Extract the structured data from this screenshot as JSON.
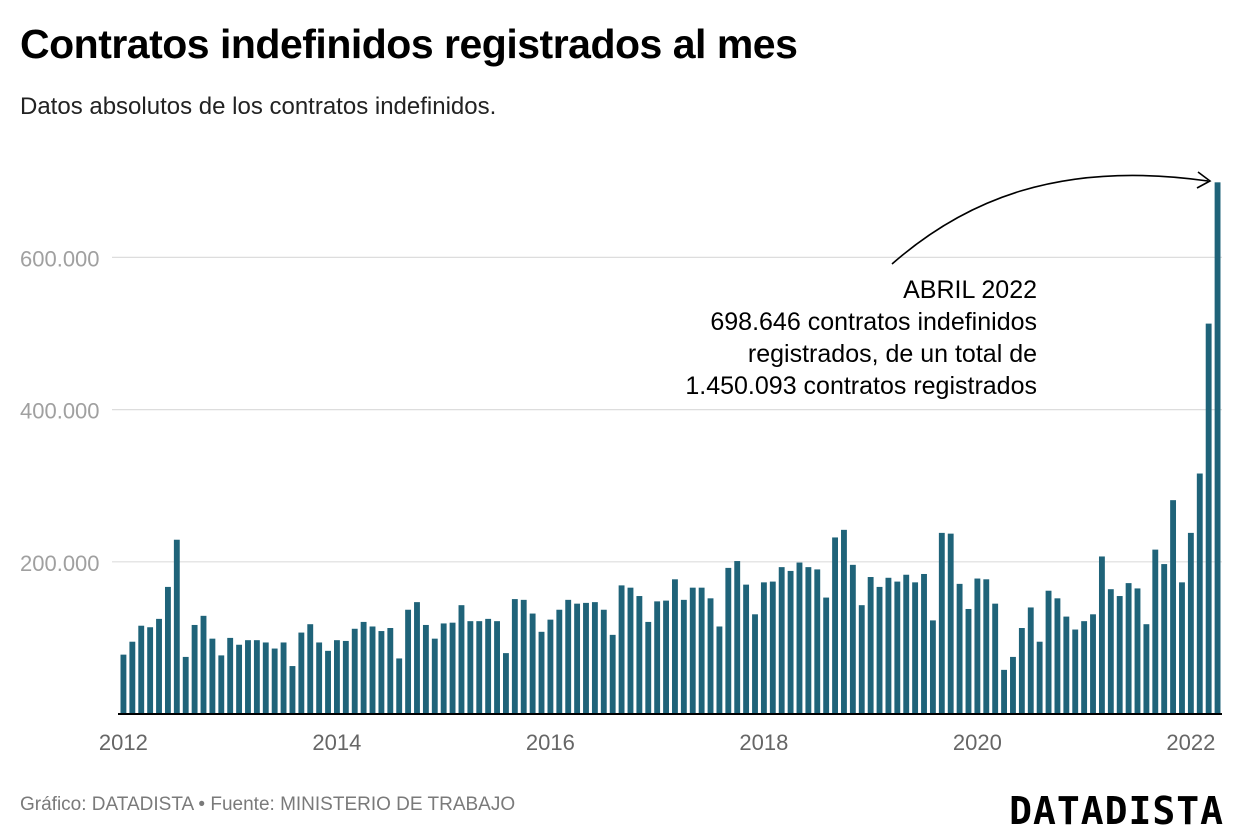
{
  "header": {
    "title": "Contratos indefinidos registrados al mes",
    "subtitle": "Datos absolutos de los contratos indefinidos."
  },
  "annotation": {
    "line1": "ABRIL 2022",
    "line2": "698.646 contratos indefinidos",
    "line3": "registrados, de un total de",
    "line4": "1.450.093 contratos registrados"
  },
  "footer": {
    "source": "Gráfico: DATADISTA • Fuente: MINISTERIO DE TRABAJO",
    "logo": "DATADISTA"
  },
  "colors": {
    "bar": "#1f6379",
    "grid": "#dddddd",
    "axis_text": "#a0a0a0"
  },
  "chart_data": {
    "type": "bar",
    "title": "Contratos indefinidos registrados al mes",
    "subtitle": "Datos absolutos de los contratos indefinidos.",
    "xlabel": "",
    "ylabel": "",
    "ylim": [
      0,
      700000
    ],
    "yticks": [
      200000,
      400000,
      600000
    ],
    "ytick_labels": [
      "200.000",
      "400.000",
      "600.000"
    ],
    "xtick_labels": [
      "2012",
      "2014",
      "2016",
      "2018",
      "2020",
      "2022"
    ],
    "grid": true,
    "start": "2012-01",
    "end": "2022-04",
    "series": [
      {
        "name": "Contratos indefinidos",
        "values": [
          78000,
          95000,
          116000,
          114000,
          125000,
          167000,
          229000,
          75000,
          117000,
          129000,
          99000,
          77000,
          100000,
          91000,
          97000,
          97000,
          94000,
          86000,
          94000,
          63000,
          107000,
          118000,
          94000,
          83000,
          97000,
          96000,
          112000,
          121000,
          115000,
          109000,
          113000,
          73000,
          137000,
          147000,
          117000,
          99000,
          119000,
          120000,
          143000,
          122000,
          122000,
          125000,
          122000,
          80000,
          151000,
          150000,
          132000,
          108000,
          124000,
          137000,
          150000,
          145000,
          146000,
          147000,
          137000,
          104000,
          169000,
          166000,
          155000,
          121000,
          148000,
          149000,
          177000,
          150000,
          166000,
          166000,
          152000,
          115000,
          192000,
          201000,
          170000,
          131000,
          173000,
          174000,
          193000,
          188000,
          199000,
          193000,
          190000,
          153000,
          232000,
          242000,
          196000,
          143000,
          180000,
          167000,
          179000,
          174000,
          183000,
          173000,
          184000,
          123000,
          238000,
          237000,
          171000,
          138000,
          178000,
          177000,
          145000,
          58000,
          75000,
          113000,
          140000,
          95000,
          162000,
          152000,
          128000,
          111000,
          122000,
          131000,
          207000,
          164000,
          155000,
          172000,
          165000,
          118000,
          216000,
          197000,
          281000,
          173000,
          238000,
          316000,
          513000,
          698646
        ]
      }
    ]
  }
}
